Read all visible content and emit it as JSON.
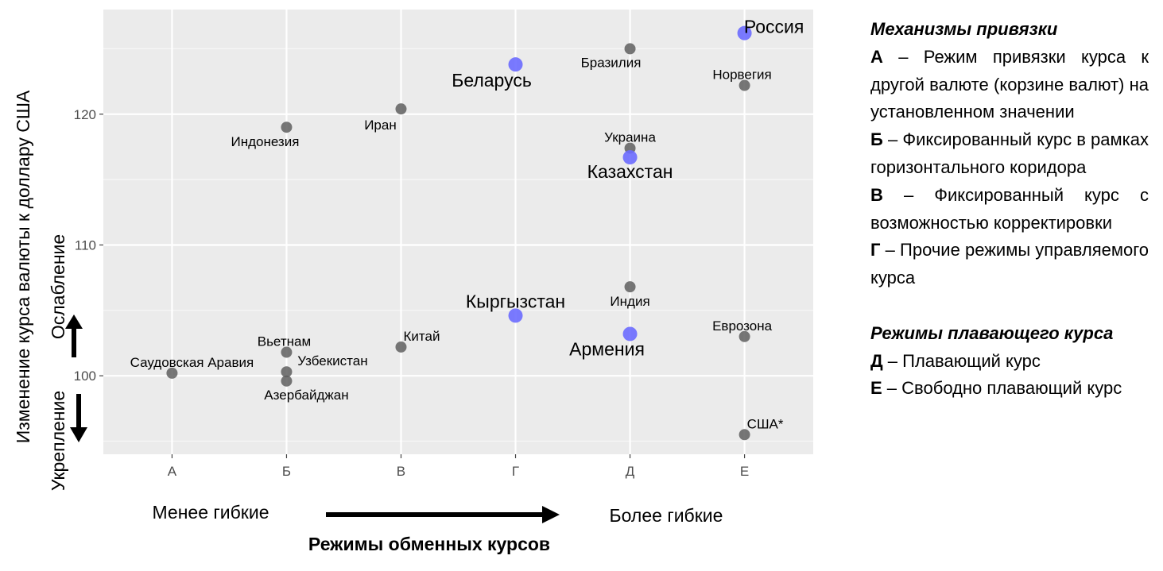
{
  "chart_data": {
    "type": "scatter",
    "categories": [
      "А",
      "Б",
      "В",
      "Г",
      "Д",
      "Е"
    ],
    "ylabel": "Изменение курса валюты к доллару США",
    "yticks": [
      100,
      110,
      120
    ],
    "ylim": [
      94,
      128
    ],
    "grid": true,
    "highlight_color": "#6b6bff",
    "default_color": "#5f5f5f",
    "points": [
      {
        "label": "Саудовская Аравия",
        "x": "А",
        "y": 100.2,
        "highlight": false
      },
      {
        "label": "Вьетнам",
        "x": "Б",
        "y": 101.8,
        "highlight": false
      },
      {
        "label": "Узбекистан",
        "x": "Б",
        "y": 100.3,
        "highlight": false
      },
      {
        "label": "Азербайджан",
        "x": "Б",
        "y": 99.6,
        "highlight": false
      },
      {
        "label": "Индонезия",
        "x": "Б",
        "y": 119.0,
        "highlight": false
      },
      {
        "label": "Иран",
        "x": "В",
        "y": 120.4,
        "highlight": false
      },
      {
        "label": "Китай",
        "x": "В",
        "y": 102.2,
        "highlight": false
      },
      {
        "label": "Беларусь",
        "x": "Г",
        "y": 123.8,
        "highlight": true
      },
      {
        "label": "Кыргызстан",
        "x": "Г",
        "y": 104.6,
        "highlight": true
      },
      {
        "label": "Бразилия",
        "x": "Д",
        "y": 125.0,
        "highlight": false
      },
      {
        "label": "Украина",
        "x": "Д",
        "y": 117.4,
        "highlight": false
      },
      {
        "label": "Казахстан",
        "x": "Д",
        "y": 116.7,
        "highlight": true
      },
      {
        "label": "Индия",
        "x": "Д",
        "y": 106.8,
        "highlight": false
      },
      {
        "label": "Армения",
        "x": "Д",
        "y": 103.2,
        "highlight": true
      },
      {
        "label": "Россия",
        "x": "Е",
        "y": 126.2,
        "highlight": true
      },
      {
        "label": "Норвегия",
        "x": "Е",
        "y": 122.2,
        "highlight": false
      },
      {
        "label": "Еврозона",
        "x": "Е",
        "y": 103.0,
        "highlight": false
      },
      {
        "label": "США*",
        "x": "Е",
        "y": 95.5,
        "highlight": false
      }
    ],
    "annotations": {
      "weakening": "Ослабление",
      "strengthening": "Укрепление",
      "less_flexible": "Менее гибкие",
      "more_flexible": "Более гибкие",
      "xlabel": "Режимы обменных курсов"
    }
  },
  "legend": {
    "fixed_title": "Механизмы привязки",
    "fixed_items": [
      {
        "key": "А",
        "text": "Режим привязки курса к другой валюте (корзине валют) на установленном значении"
      },
      {
        "key": "Б",
        "text": "Фиксированный курс в рамках горизонтального коридора"
      },
      {
        "key": "В",
        "text": "Фиксированный курс с возможностью корректировки"
      },
      {
        "key": "Г",
        "text": "Прочие режимы управляемого курса"
      }
    ],
    "float_title": "Режимы плавающего курса",
    "float_items": [
      {
        "key": "Д",
        "text": "Плавающий курс"
      },
      {
        "key": "Е",
        "text": "Свободно плавающий курс"
      }
    ],
    "separator": " – "
  }
}
